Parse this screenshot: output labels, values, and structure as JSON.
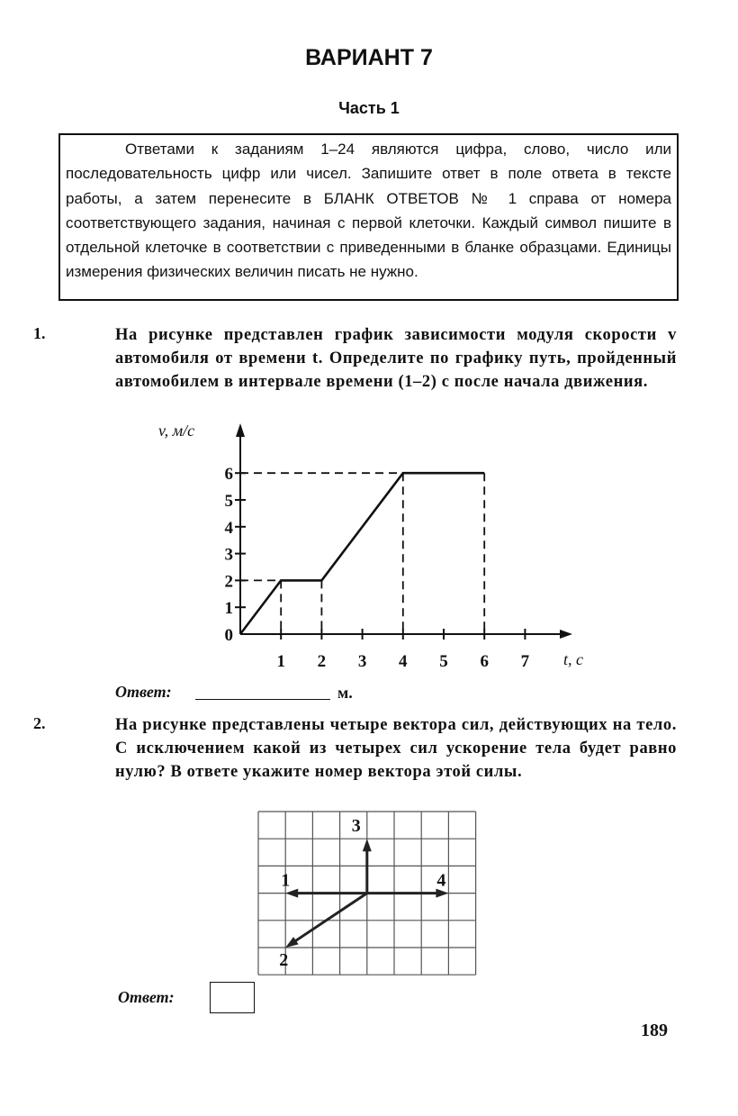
{
  "header": {
    "title": "ВАРИАНТ 7",
    "part": "Часть 1"
  },
  "instructions": "Ответами к заданиям 1–24 являются цифра, слово, число или последовательность цифр или чисел. Запишите ответ в поле ответа в тексте работы, а затем перенесите в БЛАНК ОТВЕТОВ № 1 справа от номера соответствующего задания, начиная с первой клеточки. Каждый символ пишите в отдельной клеточке в соответствии с приведенными в бланке образцами. Единицы измерения физических величин писать не нужно.",
  "task1": {
    "number": "1.",
    "text": "На рисунке представлен график зависимости модуля скорости v автомобиля от времени t. Определите по графику путь, пройденный автомобилем в интервале времени (1–2) с после начала движения.",
    "answer_label": "Ответ:",
    "answer_unit": "м."
  },
  "chart_data": {
    "type": "line",
    "xlabel": "t, с",
    "ylabel": "v, м/с",
    "x_ticks": [
      "1",
      "2",
      "3",
      "4",
      "5",
      "6",
      "7"
    ],
    "y_ticks": [
      "0",
      "1",
      "2",
      "3",
      "4",
      "5",
      "6"
    ],
    "xlim": [
      0,
      7.5
    ],
    "ylim": [
      0,
      7
    ],
    "series": [
      {
        "x": [
          0,
          1,
          2,
          4,
          6
        ],
        "y": [
          0,
          2,
          2,
          6,
          6
        ]
      }
    ],
    "dashed_guides": [
      {
        "x": 1,
        "y": 2
      },
      {
        "x": 2,
        "y": 2
      },
      {
        "x": 4,
        "y": 6
      },
      {
        "x": 6,
        "y": 6
      }
    ],
    "grid": false
  },
  "task2": {
    "number": "2.",
    "text": "На рисунке представлены четыре вектора сил, действующих на тело. С исключением какой из четырех сил ускорение тела будет равно нулю? В ответе укажите номер вектора этой силы.",
    "answer_label": "Ответ:",
    "vectors": [
      {
        "label": "1",
        "dx": -3,
        "dy": 0
      },
      {
        "label": "2",
        "dx": -3,
        "dy": -2
      },
      {
        "label": "3",
        "dx": 0,
        "dy": 2
      },
      {
        "label": "4",
        "dx": 3,
        "dy": 0
      }
    ],
    "grid_cols": 8,
    "grid_rows": 6
  },
  "page_number": "189"
}
